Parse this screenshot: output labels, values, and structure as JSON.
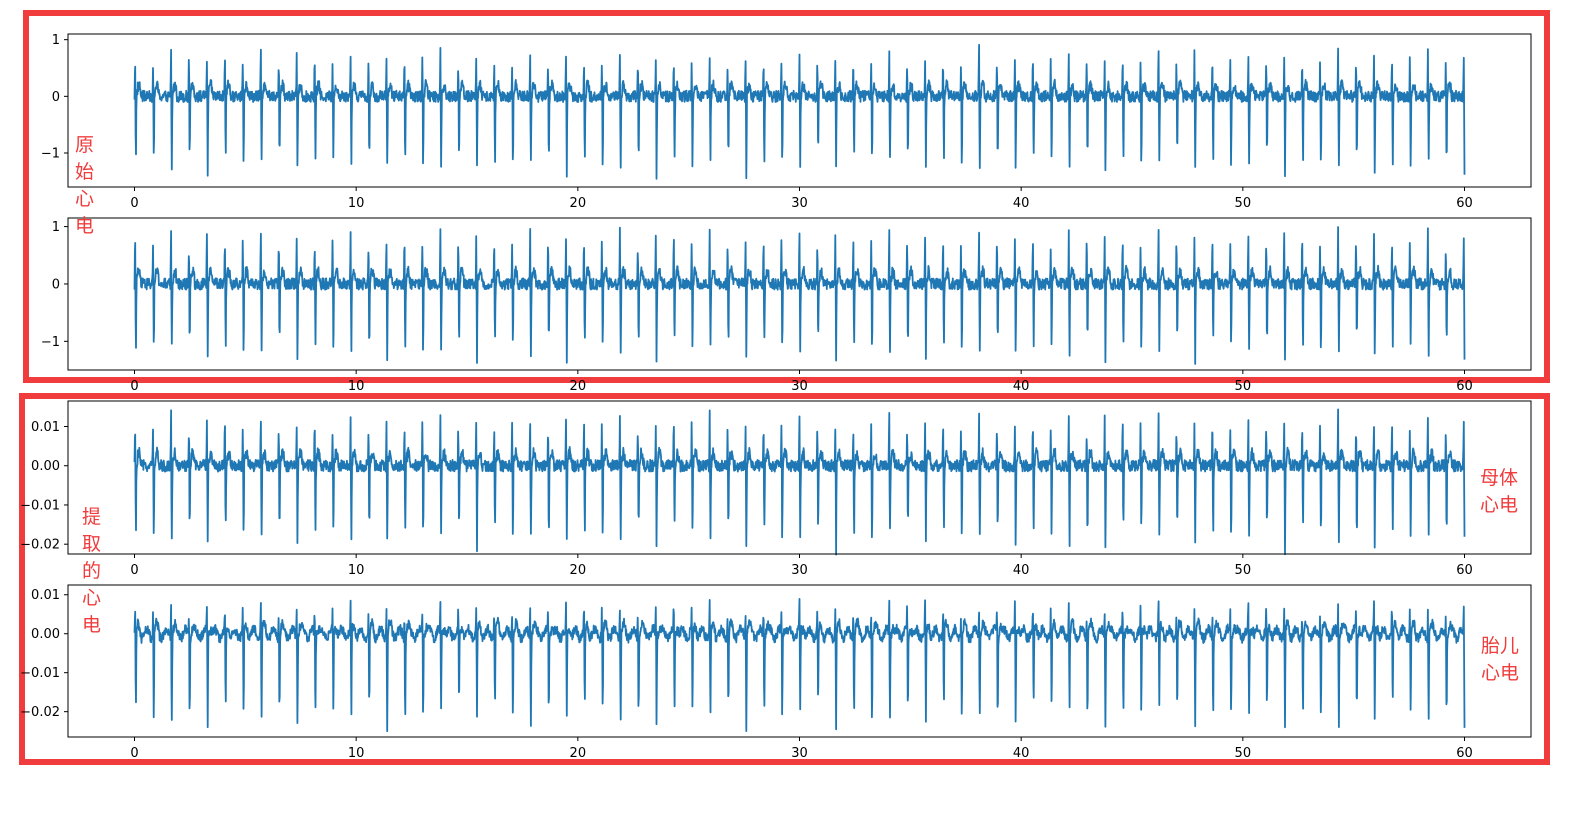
{
  "colors": {
    "line": "#1f77b4",
    "annotation": "#f03c3c",
    "axes": "#000000"
  },
  "annotations": {
    "raw": [
      "原",
      "始",
      "心",
      "电"
    ],
    "extracted": [
      "提",
      "取",
      "的",
      "心",
      "电"
    ],
    "maternal": [
      "母体",
      "心电"
    ],
    "fetal": [
      "胎儿",
      "心电"
    ]
  },
  "chart_data": [
    {
      "type": "line",
      "panel": "raw-ecg-1",
      "xlim": [
        -3,
        63
      ],
      "ylim": [
        -1.6,
        1.1
      ],
      "xticks": [
        0,
        10,
        20,
        30,
        40,
        50,
        60
      ],
      "xtick_labels": [
        "0",
        "10",
        "20",
        "30",
        "40",
        "50",
        "60"
      ],
      "yticks": [
        1,
        0,
        -1
      ],
      "ytick_labels": [
        "1",
        "0",
        "−1"
      ],
      "series": [
        {
          "x_range": [
            0,
            60
          ],
          "beat_interval_s": 0.81,
          "peak": 0.78,
          "trough": -1.35,
          "baseline_noise": 0.1
        }
      ]
    },
    {
      "type": "line",
      "panel": "raw-ecg-2",
      "xlim": [
        -3,
        63
      ],
      "ylim": [
        -1.5,
        1.15
      ],
      "xticks": [
        0,
        10,
        20,
        30,
        40,
        50,
        60
      ],
      "xtick_labels": [
        "0",
        "10",
        "20",
        "30",
        "40",
        "50",
        "60"
      ],
      "yticks": [
        1,
        0,
        -1
      ],
      "ytick_labels": [
        "1",
        "0",
        "−1"
      ],
      "series": [
        {
          "x_range": [
            0,
            60
          ],
          "beat_interval_s": 0.81,
          "peak": 0.9,
          "trough": -1.3,
          "baseline_noise": 0.1
        }
      ]
    },
    {
      "type": "line",
      "panel": "extracted-maternal-ecg",
      "xlim": [
        -3,
        63
      ],
      "ylim": [
        -0.0225,
        0.0165
      ],
      "xticks": [
        0,
        10,
        20,
        30,
        40,
        50,
        60
      ],
      "xtick_labels": [
        "0",
        "10",
        "20",
        "30",
        "40",
        "50",
        "60"
      ],
      "yticks": [
        0.01,
        0.0,
        -0.01,
        -0.02
      ],
      "ytick_labels": [
        "0.01",
        "0.00",
        "−0.01",
        "−0.02"
      ],
      "series": [
        {
          "x_range": [
            0,
            60
          ],
          "beat_interval_s": 0.81,
          "peak": 0.0125,
          "trough": -0.0205,
          "baseline_noise": 0.0015
        }
      ]
    },
    {
      "type": "line",
      "panel": "extracted-fetal-ecg",
      "xlim": [
        -3,
        63
      ],
      "ylim": [
        -0.0265,
        0.0125
      ],
      "xticks": [
        0,
        10,
        20,
        30,
        40,
        50,
        60
      ],
      "xtick_labels": [
        "0",
        "10",
        "20",
        "30",
        "40",
        "50",
        "60"
      ],
      "yticks": [
        0.01,
        0.0,
        -0.01,
        -0.02
      ],
      "ytick_labels": [
        "0.01",
        "0.00",
        "−0.01",
        "−0.02"
      ],
      "series": [
        {
          "x_range": [
            0,
            60
          ],
          "beat_interval_s": 0.81,
          "peak": 0.0075,
          "trough": -0.0235,
          "baseline_noise": 0.0012
        }
      ]
    }
  ]
}
